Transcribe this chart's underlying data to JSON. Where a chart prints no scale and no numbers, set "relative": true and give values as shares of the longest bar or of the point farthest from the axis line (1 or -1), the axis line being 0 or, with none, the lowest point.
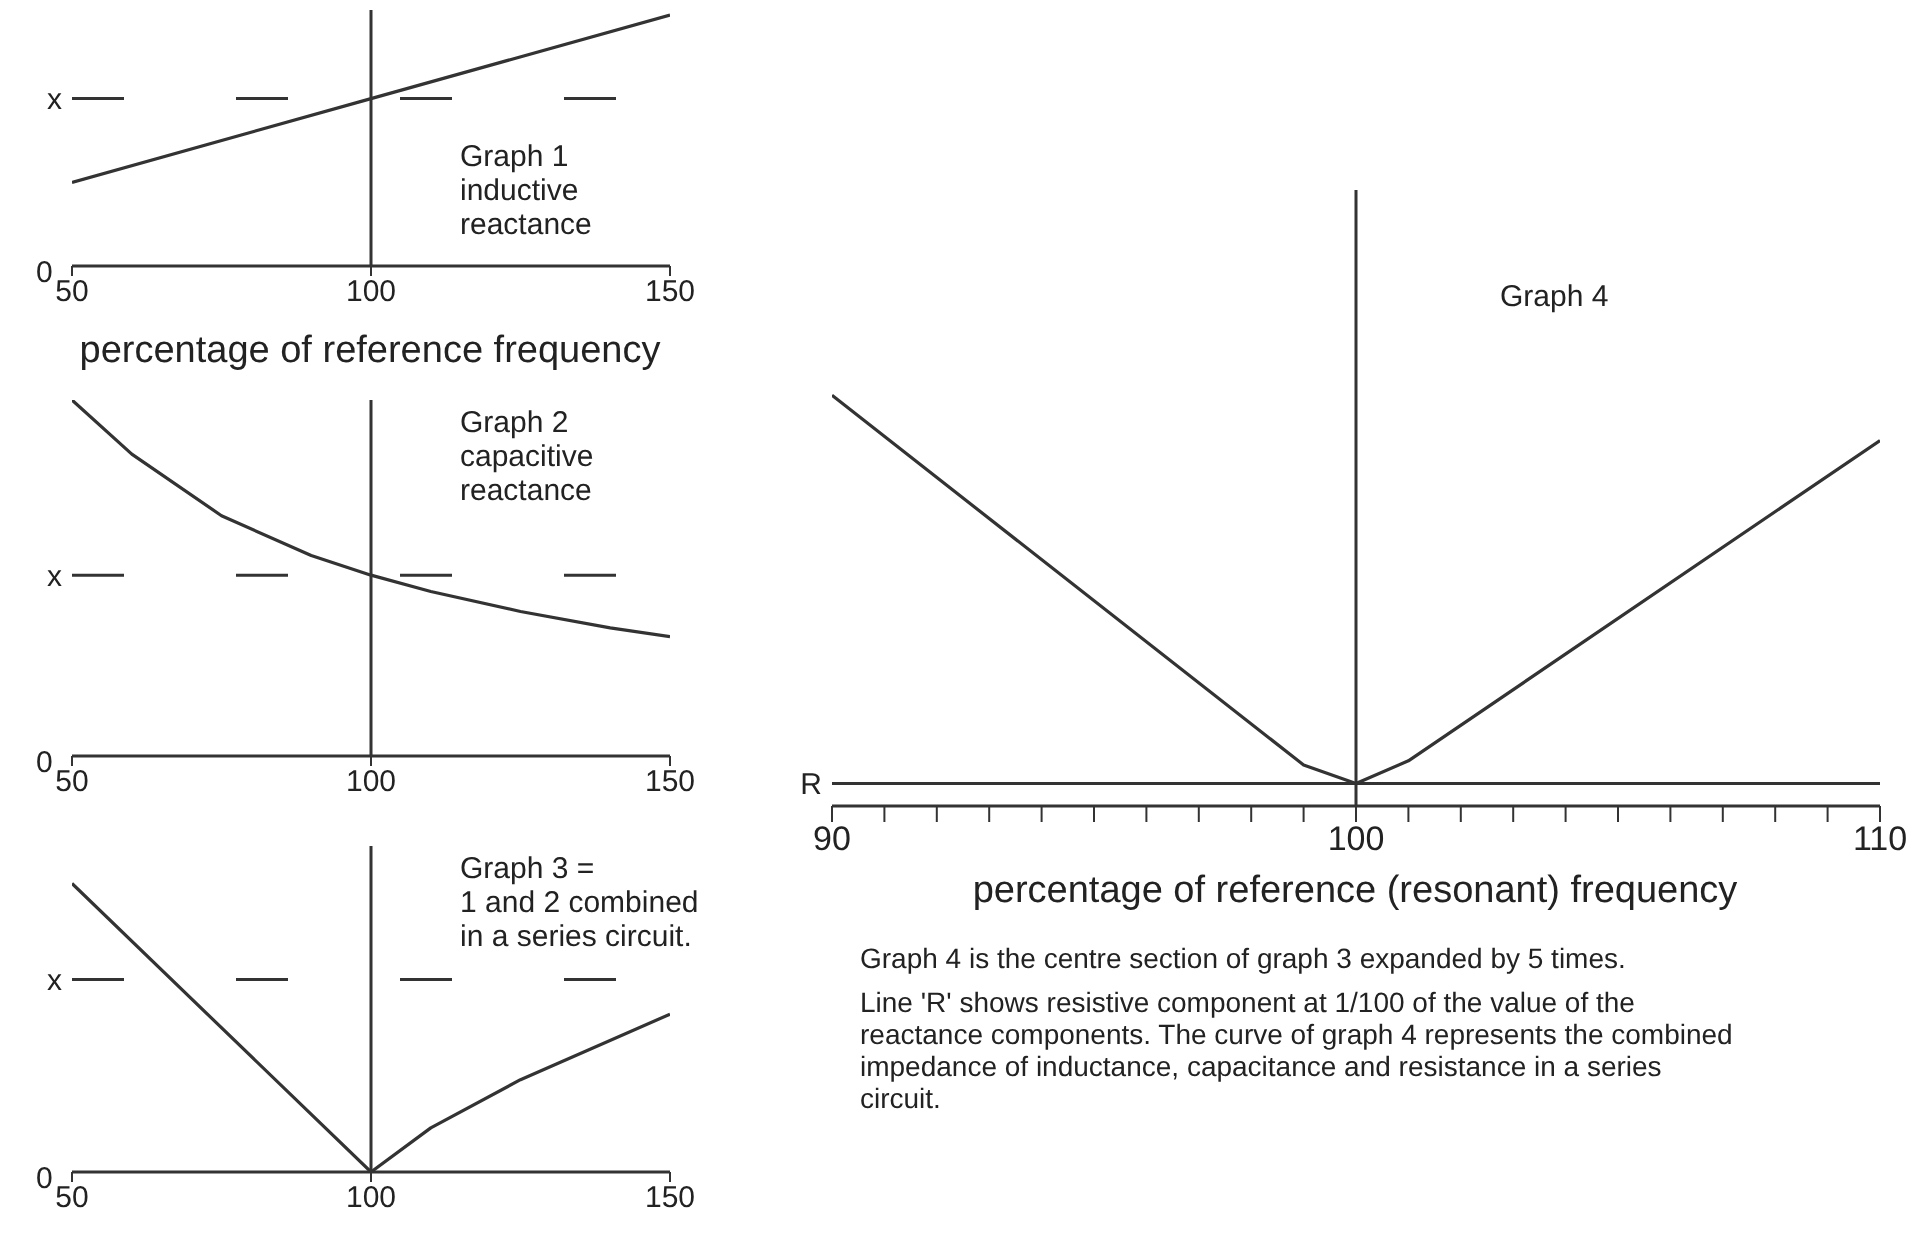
{
  "chart_data": [
    {
      "type": "line",
      "title": "Graph 1\ninductive\nreactance",
      "xlabel": "percentage of reference frequency",
      "x": [
        50,
        100,
        150
      ],
      "relative": true,
      "series": [
        {
          "color": "#333333",
          "values": [
            0.333,
            0.667,
            1
          ]
        }
      ],
      "xlim": [
        50,
        150
      ],
      "xticks": [
        50,
        100,
        150
      ],
      "ref_lines": [
        {
          "axis": "x",
          "value": 100
        },
        {
          "axis": "y",
          "value": 0.667,
          "line_style": "dashed",
          "label": "x"
        }
      ],
      "annotations": [
        "0"
      ]
    },
    {
      "type": "line",
      "title": "Graph 2\ncapacitive\nreactance",
      "x": [
        50,
        60,
        75,
        90,
        100,
        110,
        125,
        140,
        150
      ],
      "relative": true,
      "series": [
        {
          "color": "#333333",
          "values": [
            1,
            0.848,
            0.675,
            0.563,
            0.508,
            0.462,
            0.406,
            0.36,
            0.335
          ]
        }
      ],
      "xlim": [
        50,
        150
      ],
      "xticks": [
        50,
        100,
        150
      ],
      "ref_lines": [
        {
          "axis": "x",
          "value": 100
        },
        {
          "axis": "y",
          "value": 0.508,
          "line_style": "dashed",
          "label": "x"
        }
      ],
      "annotations": [
        "0"
      ]
    },
    {
      "type": "line",
      "title": "Graph 3 =\n1 and 2 combined\nin a series circuit.",
      "x": [
        50,
        100,
        110,
        125,
        150
      ],
      "relative": true,
      "series": [
        {
          "color": "#333333",
          "values": [
            1,
            0,
            0.153,
            0.32,
            0.547
          ]
        }
      ],
      "xlim": [
        50,
        150
      ],
      "xticks": [
        50,
        100,
        150
      ],
      "ref_lines": [
        {
          "axis": "x",
          "value": 100
        },
        {
          "axis": "y",
          "value": 0.667,
          "line_style": "dashed",
          "label": "x"
        }
      ],
      "annotations": [
        "0"
      ]
    },
    {
      "type": "line",
      "title": "Graph 4",
      "xlabel": "percentage of reference (resonant) frequency",
      "x": [
        90,
        99,
        100,
        101,
        110
      ],
      "relative": true,
      "series": [
        {
          "color": "#333333",
          "values": [
            1,
            0.1,
            0.055,
            0.11,
            0.89
          ]
        }
      ],
      "xlim": [
        90,
        110
      ],
      "xticks": [
        90,
        {
          "value": 91,
          "label": null
        },
        {
          "value": 92,
          "label": null
        },
        {
          "value": 93,
          "label": null
        },
        {
          "value": 94,
          "label": null
        },
        {
          "value": 95,
          "label": null
        },
        {
          "value": 96,
          "label": null
        },
        {
          "value": 97,
          "label": null
        },
        {
          "value": 98,
          "label": null
        },
        {
          "value": 99,
          "label": null
        },
        100,
        {
          "value": 101,
          "label": null
        },
        {
          "value": 102,
          "label": null
        },
        {
          "value": 103,
          "label": null
        },
        {
          "value": 104,
          "label": null
        },
        {
          "value": 105,
          "label": null
        },
        {
          "value": 106,
          "label": null
        },
        {
          "value": 107,
          "label": null
        },
        {
          "value": 108,
          "label": null
        },
        {
          "value": 109,
          "label": null
        },
        110
      ],
      "ref_lines": [
        {
          "axis": "x",
          "value": 100
        },
        {
          "axis": "y",
          "value": 0.055,
          "label": "R"
        }
      ],
      "annotations": [
        "Graph 4 is the centre section of graph 3 expanded by 5 times.",
        "Line 'R' shows resistive component at 1/100 of the value of the reactance components. The curve of graph 4 represents the combined impedance of inductance, capacitance and resistance in a series circuit."
      ]
    }
  ]
}
